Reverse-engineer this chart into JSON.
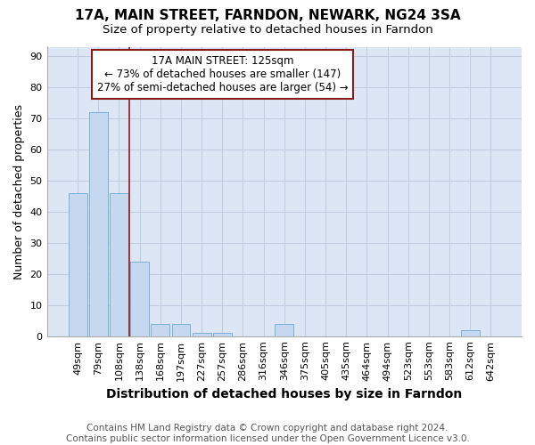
{
  "title": "17A, MAIN STREET, FARNDON, NEWARK, NG24 3SA",
  "subtitle": "Size of property relative to detached houses in Farndon",
  "xlabel": "Distribution of detached houses by size in Farndon",
  "ylabel": "Number of detached properties",
  "categories": [
    "49sqm",
    "79sqm",
    "108sqm",
    "138sqm",
    "168sqm",
    "197sqm",
    "227sqm",
    "257sqm",
    "286sqm",
    "316sqm",
    "346sqm",
    "375sqm",
    "405sqm",
    "435sqm",
    "464sqm",
    "494sqm",
    "523sqm",
    "553sqm",
    "583sqm",
    "612sqm",
    "642sqm"
  ],
  "values": [
    46,
    72,
    46,
    24,
    4,
    4,
    1,
    1,
    0,
    0,
    4,
    0,
    0,
    0,
    0,
    0,
    0,
    0,
    0,
    2,
    0
  ],
  "bar_color": "#c5d8f0",
  "bar_edgecolor": "#7aafd4",
  "vline_x": 2.5,
  "vline_color": "#8b1a1a",
  "annotation_text": "17A MAIN STREET: 125sqm\n← 73% of detached houses are smaller (147)\n27% of semi-detached houses are larger (54) →",
  "annotation_box_edgecolor": "#8b1a1a",
  "annotation_box_facecolor": "#ffffff",
  "ylim": [
    0,
    93
  ],
  "yticks": [
    0,
    10,
    20,
    30,
    40,
    50,
    60,
    70,
    80,
    90
  ],
  "plot_bg_color": "#dce6f5",
  "fig_bg_color": "#ffffff",
  "grid_color": "#c0cce0",
  "footer": "Contains HM Land Registry data © Crown copyright and database right 2024.\nContains public sector information licensed under the Open Government Licence v3.0.",
  "title_fontsize": 11,
  "subtitle_fontsize": 9.5,
  "xlabel_fontsize": 10,
  "ylabel_fontsize": 9,
  "tick_fontsize": 8,
  "footer_fontsize": 7.5,
  "annot_fontsize": 8.5
}
